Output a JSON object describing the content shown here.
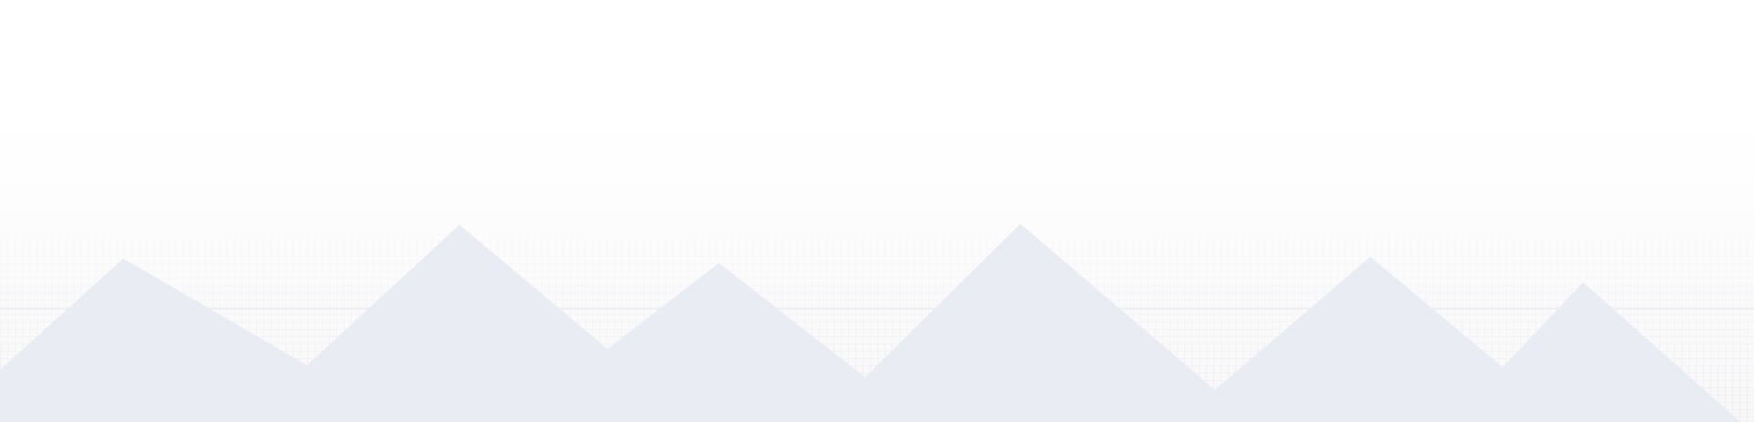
{
  "scene": {
    "colors": {
      "background_top": "#ffffff",
      "background_bottom": "#f7f7f8",
      "grid_line": "#dcdee3",
      "mountain_fill": "#e9ecf3"
    }
  }
}
